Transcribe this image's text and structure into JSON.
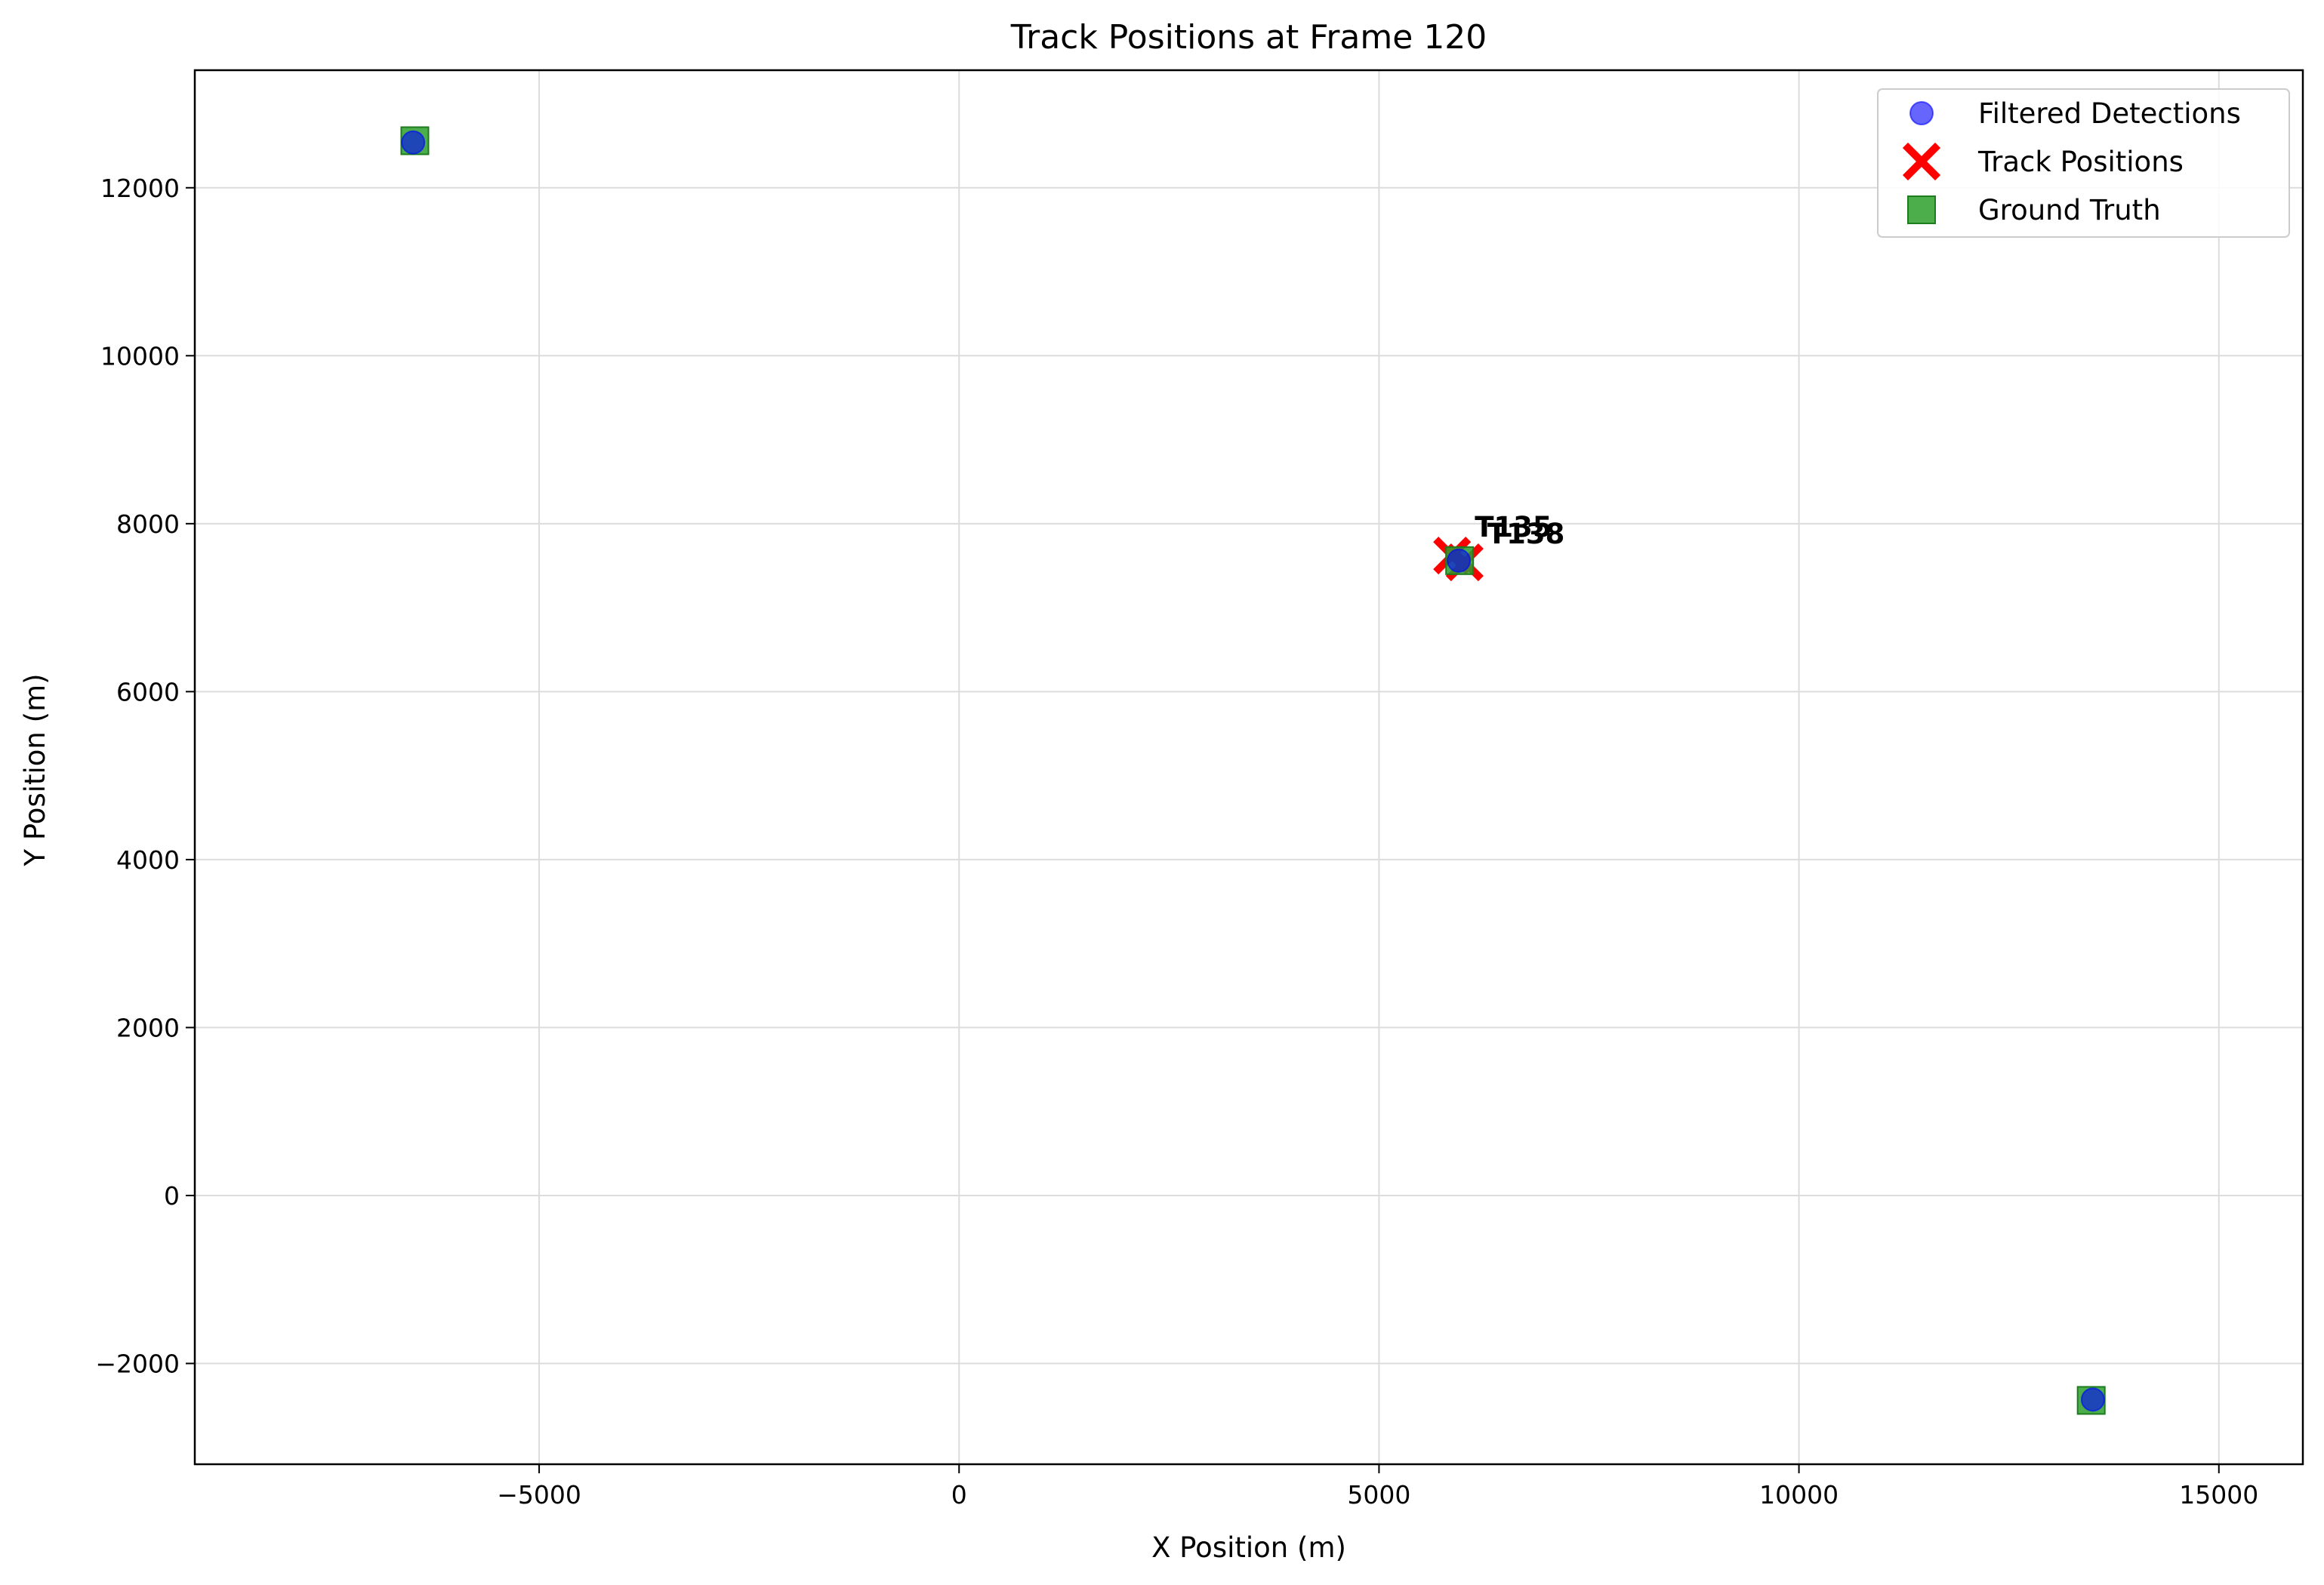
{
  "chart_data": {
    "type": "scatter",
    "title": "Track Positions at Frame 120",
    "xlabel": "X Position (m)",
    "ylabel": "Y Position (m)",
    "xlim": [
      -9100,
      16000
    ],
    "ylim": [
      -3200,
      13400
    ],
    "x_ticks": [
      -5000,
      0,
      5000,
      10000,
      15000
    ],
    "x_tick_labels": [
      "−5000",
      "0",
      "5000",
      "10000",
      "15000"
    ],
    "y_ticks": [
      -2000,
      0,
      2000,
      4000,
      6000,
      8000,
      10000,
      12000
    ],
    "y_tick_labels": [
      "−2000",
      "0",
      "2000",
      "4000",
      "6000",
      "8000",
      "10000",
      "12000"
    ],
    "grid": true,
    "legend_position": "top-right",
    "series": [
      {
        "name": "Filtered Detections",
        "marker": "circle",
        "color": "#0000ff",
        "points": [
          {
            "x": -6500,
            "y": 12540
          },
          {
            "x": 5950,
            "y": 7560
          },
          {
            "x": 13500,
            "y": -2430
          }
        ]
      },
      {
        "name": "Track Positions",
        "marker": "x",
        "color": "#ff0000",
        "points": [
          {
            "x": 5870,
            "y": 7620,
            "label": "T135"
          },
          {
            "x": 6020,
            "y": 7540,
            "label": "T138"
          }
        ]
      },
      {
        "name": "Ground Truth",
        "marker": "square",
        "color": "#2ca02c",
        "points": [
          {
            "x": -6480,
            "y": 12560
          },
          {
            "x": 5960,
            "y": 7560
          },
          {
            "x": 13480,
            "y": -2440
          }
        ]
      }
    ]
  }
}
